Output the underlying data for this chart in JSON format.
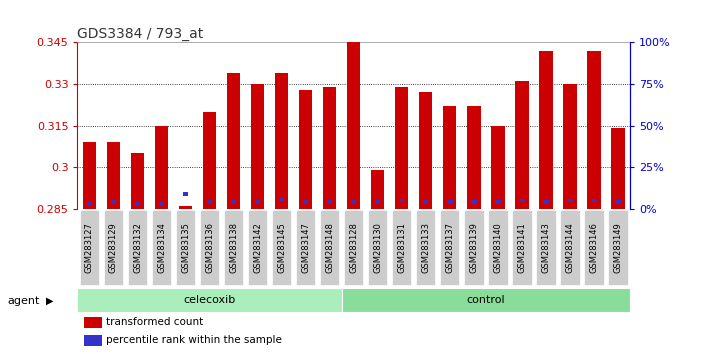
{
  "title": "GDS3384 / 793_at",
  "samples": [
    "GSM283127",
    "GSM283129",
    "GSM283132",
    "GSM283134",
    "GSM283135",
    "GSM283136",
    "GSM283138",
    "GSM283142",
    "GSM283145",
    "GSM283147",
    "GSM283148",
    "GSM283128",
    "GSM283130",
    "GSM283131",
    "GSM283133",
    "GSM283137",
    "GSM283139",
    "GSM283140",
    "GSM283141",
    "GSM283143",
    "GSM283144",
    "GSM283146",
    "GSM283149"
  ],
  "transformed_count": [
    0.309,
    0.309,
    0.305,
    0.315,
    0.286,
    0.32,
    0.334,
    0.33,
    0.334,
    0.328,
    0.329,
    0.346,
    0.299,
    0.329,
    0.327,
    0.322,
    0.322,
    0.315,
    0.331,
    0.342,
    0.33,
    0.342,
    0.314
  ],
  "percentile_rank": [
    2,
    3,
    2,
    2,
    8,
    3,
    3,
    3,
    5,
    3,
    3,
    3,
    3,
    4,
    3,
    3,
    3,
    3,
    4,
    3,
    4,
    4,
    3
  ],
  "celecoxib_count": 11,
  "control_count": 12,
  "ymin": 0.285,
  "ymax": 0.345,
  "yticks": [
    0.285,
    0.3,
    0.315,
    0.33,
    0.345
  ],
  "bar_color": "#cc0000",
  "bar_width": 0.55,
  "blue_color": "#3333cc",
  "celecoxib_color": "#aaeebb",
  "control_color": "#88dd99",
  "title_color": "#333333",
  "left_axis_color": "#cc0000",
  "right_axis_color": "#0000cc",
  "grid_ticks": [
    0.3,
    0.315,
    0.33
  ]
}
